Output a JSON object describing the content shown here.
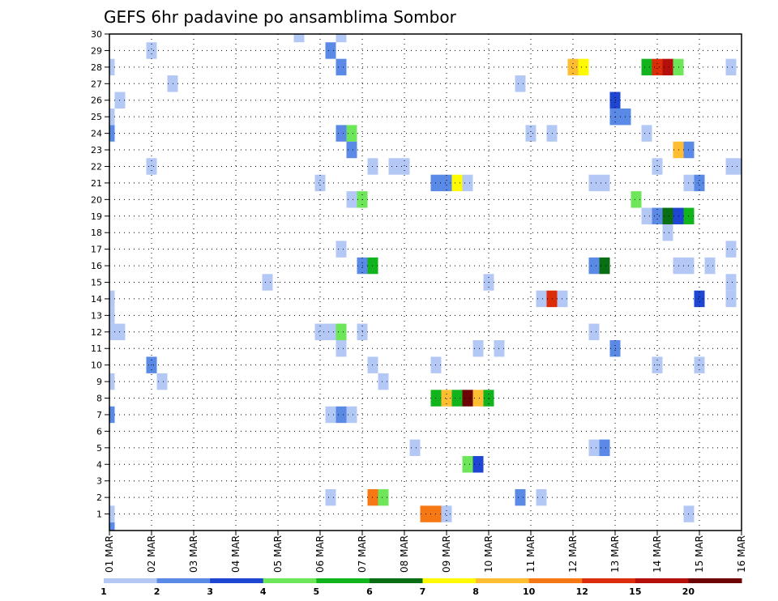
{
  "chart_data": {
    "type": "heatmap",
    "title": "GEFS 6hr padavine po ansamblima Sombor",
    "xlabel": "",
    "ylabel": "",
    "x_ticks": [
      "01 MAR",
      "02 MAR",
      "03 MAR",
      "04 MAR",
      "05 MAR",
      "06 MAR",
      "07 MAR",
      "08 MAR",
      "09 MAR",
      "10 MAR",
      "11 MAR",
      "12 MAR",
      "13 MAR",
      "14 MAR",
      "15 MAR",
      "16 MAR"
    ],
    "y_ticks": [
      "1",
      "2",
      "3",
      "4",
      "5",
      "6",
      "7",
      "8",
      "9",
      "10",
      "11",
      "12",
      "13",
      "14",
      "15",
      "16",
      "17",
      "18",
      "19",
      "20",
      "21",
      "22",
      "23",
      "24",
      "25",
      "26",
      "27",
      "28",
      "29",
      "30"
    ],
    "x_range": [
      0,
      60
    ],
    "y_range": [
      0,
      30
    ],
    "grid": true,
    "colorbar": {
      "labels": [
        "1",
        "2",
        "3",
        "4",
        "5",
        "6",
        "7",
        "8",
        "10",
        "12",
        "15",
        "20"
      ],
      "colors": [
        "#b4c8f5",
        "#5a8ae6",
        "#1e46d2",
        "#6ee65a",
        "#12b41e",
        "#0a6e14",
        "#fffa00",
        "#ffbe32",
        "#f57814",
        "#dc2d0a",
        "#b40f0a",
        "#6e0505"
      ]
    },
    "cells": [
      [
        0,
        0,
        "#5a8ae6"
      ],
      [
        0,
        1,
        "#b4c8f5"
      ],
      [
        0,
        7,
        "#5a8ae6"
      ],
      [
        0,
        9,
        "#b4c8f5"
      ],
      [
        0,
        12,
        "#b4c8f5"
      ],
      [
        0,
        13,
        "#b4c8f5"
      ],
      [
        0,
        14,
        "#b4c8f5"
      ],
      [
        0,
        24,
        "#5a8ae6"
      ],
      [
        0,
        25,
        "#b4c8f5"
      ],
      [
        0,
        28,
        "#b4c8f5"
      ],
      [
        1,
        12,
        "#b4c8f5"
      ],
      [
        1,
        26,
        "#b4c8f5"
      ],
      [
        4,
        22,
        "#b4c8f5"
      ],
      [
        4,
        29,
        "#b4c8f5"
      ],
      [
        4,
        10,
        "#5a8ae6"
      ],
      [
        5,
        9,
        "#b4c8f5"
      ],
      [
        6,
        27,
        "#b4c8f5"
      ],
      [
        15,
        15,
        "#b4c8f5"
      ],
      [
        18,
        30,
        "#b4c8f5"
      ],
      [
        20,
        21,
        "#b4c8f5"
      ],
      [
        20,
        12,
        "#b4c8f5"
      ],
      [
        21,
        2,
        "#b4c8f5"
      ],
      [
        21,
        12,
        "#b4c8f5"
      ],
      [
        21,
        7,
        "#b4c8f5"
      ],
      [
        21,
        29,
        "#5a8ae6"
      ],
      [
        22,
        12,
        "#6ee65a"
      ],
      [
        22,
        24,
        "#5a8ae6"
      ],
      [
        22,
        28,
        "#5a8ae6"
      ],
      [
        22,
        30,
        "#b4c8f5"
      ],
      [
        22,
        17,
        "#b4c8f5"
      ],
      [
        22,
        7,
        "#5a8ae6"
      ],
      [
        22,
        11,
        "#b4c8f5"
      ],
      [
        23,
        7,
        "#b4c8f5"
      ],
      [
        23,
        24,
        "#6ee65a"
      ],
      [
        23,
        23,
        "#5a8ae6"
      ],
      [
        23,
        20,
        "#b4c8f5"
      ],
      [
        24,
        16,
        "#5a8ae6"
      ],
      [
        24,
        20,
        "#6ee65a"
      ],
      [
        24,
        12,
        "#b4c8f5"
      ],
      [
        25,
        2,
        "#f57814"
      ],
      [
        25,
        16,
        "#12b41e"
      ],
      [
        25,
        10,
        "#b4c8f5"
      ],
      [
        25,
        22,
        "#b4c8f5"
      ],
      [
        26,
        2,
        "#6ee65a"
      ],
      [
        26,
        9,
        "#b4c8f5"
      ],
      [
        27,
        22,
        "#b4c8f5"
      ],
      [
        28,
        22,
        "#b4c8f5"
      ],
      [
        29,
        5,
        "#b4c8f5"
      ],
      [
        30,
        1,
        "#f57814"
      ],
      [
        31,
        1,
        "#f57814"
      ],
      [
        31,
        8,
        "#12b41e"
      ],
      [
        31,
        21,
        "#5a8ae6"
      ],
      [
        31,
        10,
        "#b4c8f5"
      ],
      [
        32,
        8,
        "#ffbe32"
      ],
      [
        32,
        21,
        "#5a8ae6"
      ],
      [
        32,
        1,
        "#b4c8f5"
      ],
      [
        33,
        8,
        "#12b41e"
      ],
      [
        33,
        21,
        "#fffa00"
      ],
      [
        34,
        8,
        "#6e0505"
      ],
      [
        34,
        21,
        "#b4c8f5"
      ],
      [
        34,
        4,
        "#6ee65a"
      ],
      [
        35,
        8,
        "#ffbe32"
      ],
      [
        35,
        4,
        "#1e46d2"
      ],
      [
        35,
        11,
        "#b4c8f5"
      ],
      [
        36,
        8,
        "#12b41e"
      ],
      [
        36,
        15,
        "#b4c8f5"
      ],
      [
        37,
        11,
        "#b4c8f5"
      ],
      [
        39,
        27,
        "#b4c8f5"
      ],
      [
        39,
        2,
        "#5a8ae6"
      ],
      [
        40,
        24,
        "#b4c8f5"
      ],
      [
        41,
        14,
        "#b4c8f5"
      ],
      [
        41,
        2,
        "#b4c8f5"
      ],
      [
        42,
        14,
        "#dc2d0a"
      ],
      [
        42,
        24,
        "#b4c8f5"
      ],
      [
        43,
        14,
        "#b4c8f5"
      ],
      [
        44,
        28,
        "#ffbe32"
      ],
      [
        45,
        28,
        "#fffa00"
      ],
      [
        46,
        5,
        "#b4c8f5"
      ],
      [
        46,
        16,
        "#5a8ae6"
      ],
      [
        46,
        21,
        "#b4c8f5"
      ],
      [
        46,
        12,
        "#b4c8f5"
      ],
      [
        47,
        5,
        "#5a8ae6"
      ],
      [
        47,
        16,
        "#0a6e14"
      ],
      [
        47,
        21,
        "#b4c8f5"
      ],
      [
        48,
        26,
        "#1e46d2"
      ],
      [
        48,
        25,
        "#5a8ae6"
      ],
      [
        48,
        11,
        "#5a8ae6"
      ],
      [
        49,
        25,
        "#5a8ae6"
      ],
      [
        50,
        20,
        "#6ee65a"
      ],
      [
        51,
        19,
        "#b4c8f5"
      ],
      [
        51,
        24,
        "#b4c8f5"
      ],
      [
        51,
        28,
        "#12b41e"
      ],
      [
        52,
        22,
        "#b4c8f5"
      ],
      [
        52,
        19,
        "#5a8ae6"
      ],
      [
        52,
        28,
        "#dc2d0a"
      ],
      [
        52,
        10,
        "#b4c8f5"
      ],
      [
        53,
        19,
        "#0a6e14"
      ],
      [
        53,
        28,
        "#b40f0a"
      ],
      [
        53,
        18,
        "#b4c8f5"
      ],
      [
        54,
        19,
        "#1e46d2"
      ],
      [
        54,
        28,
        "#6ee65a"
      ],
      [
        54,
        16,
        "#b4c8f5"
      ],
      [
        54,
        23,
        "#ffbe32"
      ],
      [
        55,
        19,
        "#12b41e"
      ],
      [
        55,
        23,
        "#5a8ae6"
      ],
      [
        55,
        21,
        "#b4c8f5"
      ],
      [
        55,
        16,
        "#b4c8f5"
      ],
      [
        55,
        1,
        "#b4c8f5"
      ],
      [
        56,
        21,
        "#5a8ae6"
      ],
      [
        56,
        14,
        "#1e46d2"
      ],
      [
        56,
        10,
        "#b4c8f5"
      ],
      [
        57,
        16,
        "#b4c8f5"
      ],
      [
        59,
        17,
        "#b4c8f5"
      ],
      [
        59,
        15,
        "#b4c8f5"
      ],
      [
        59,
        14,
        "#b4c8f5"
      ],
      [
        59,
        22,
        "#b4c8f5"
      ],
      [
        59,
        28,
        "#b4c8f5"
      ],
      [
        60,
        22,
        "#b4c8f5"
      ]
    ]
  }
}
